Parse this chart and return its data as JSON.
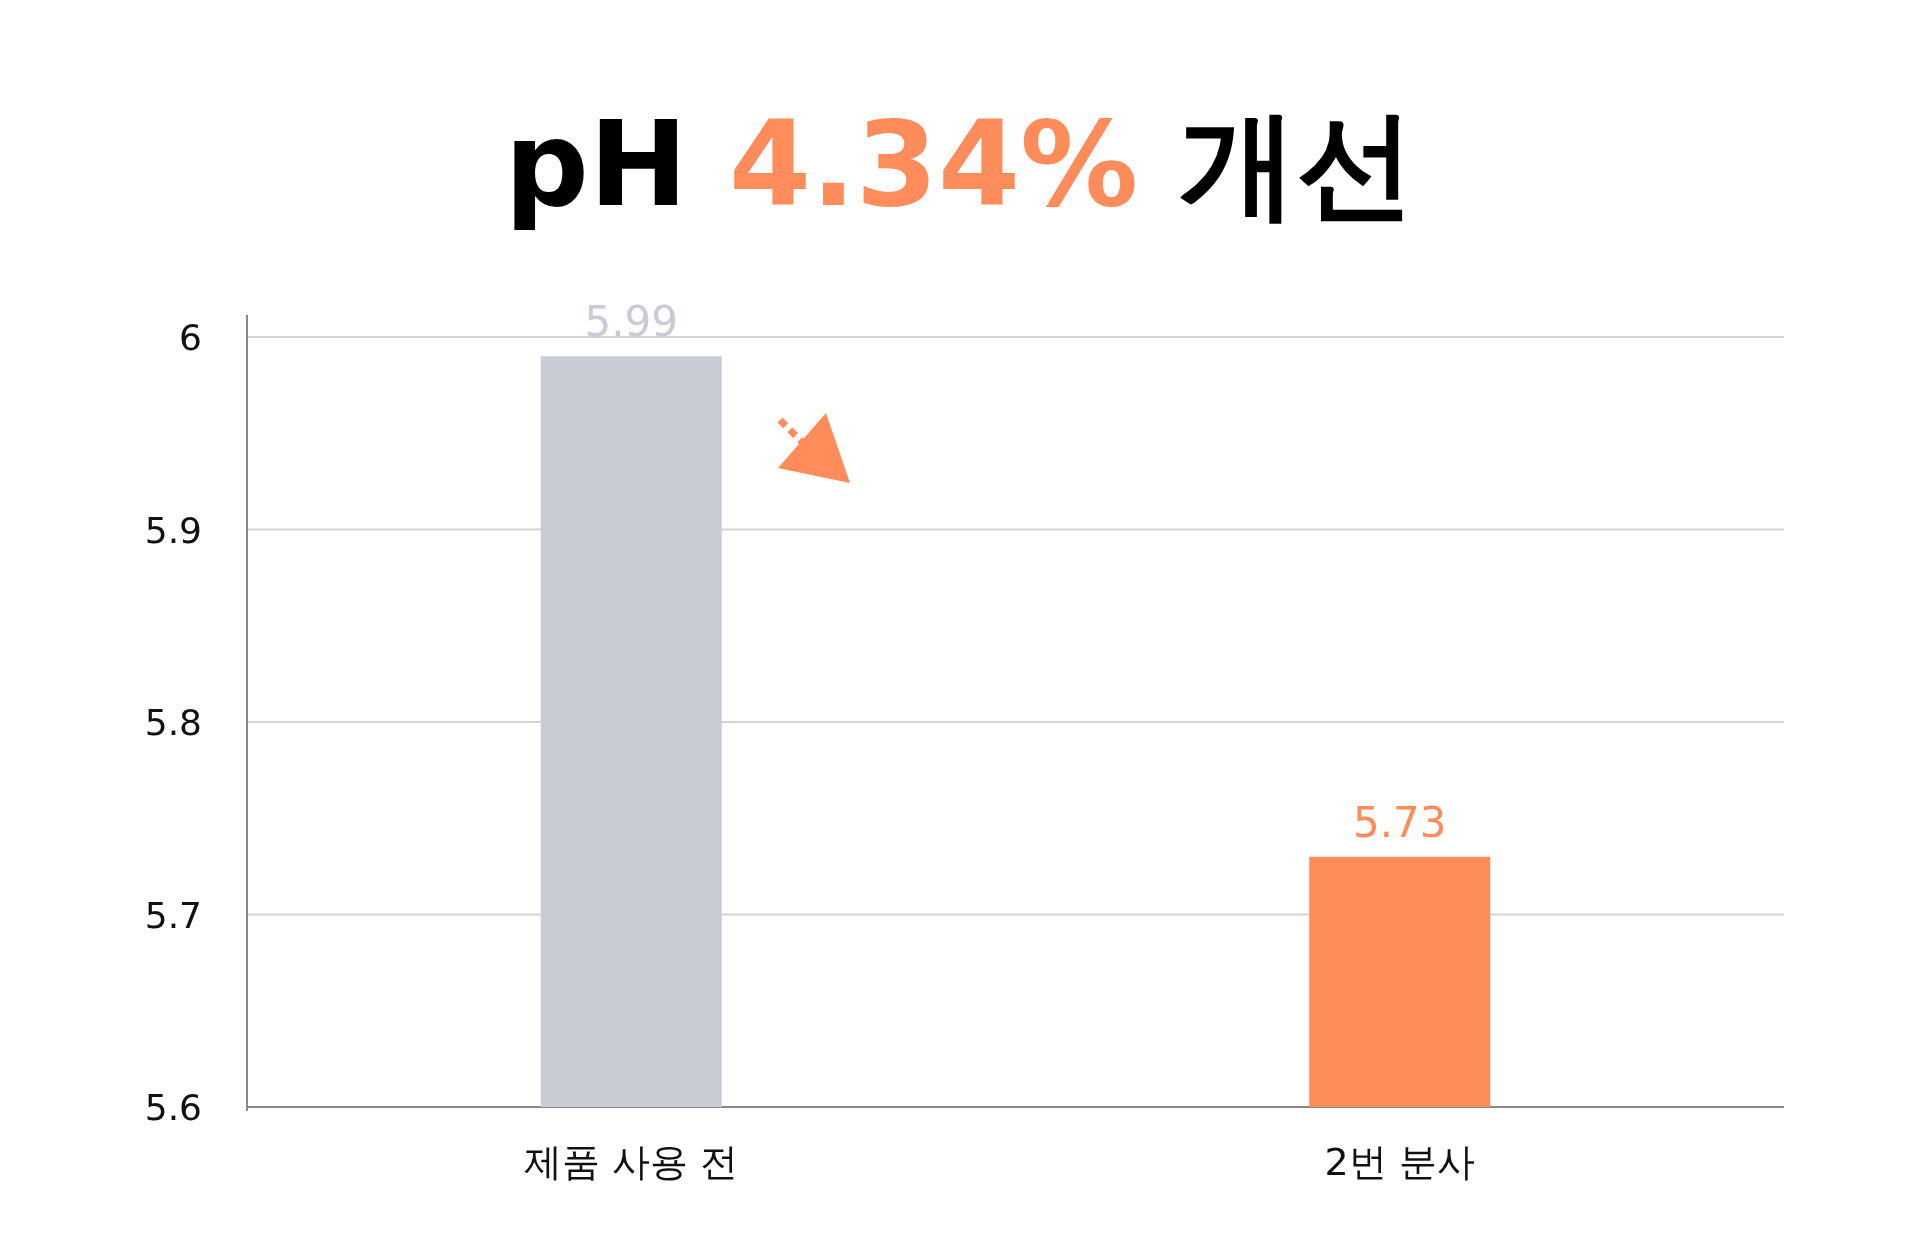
{
  "chart_data": {
    "type": "bar",
    "title": "pH **4.34%** 개선",
    "categories": [
      "제품 사용 전",
      "2번 분사"
    ],
    "values": [
      5.99,
      5.73
    ],
    "colors": [
      "#c9ccd4",
      "#ff8c5a"
    ],
    "ylim": [
      5.6,
      6
    ],
    "yticks": [
      5.6,
      5.7,
      5.8,
      5.9,
      6
    ],
    "grid": "y",
    "data_labels": true
  }
}
